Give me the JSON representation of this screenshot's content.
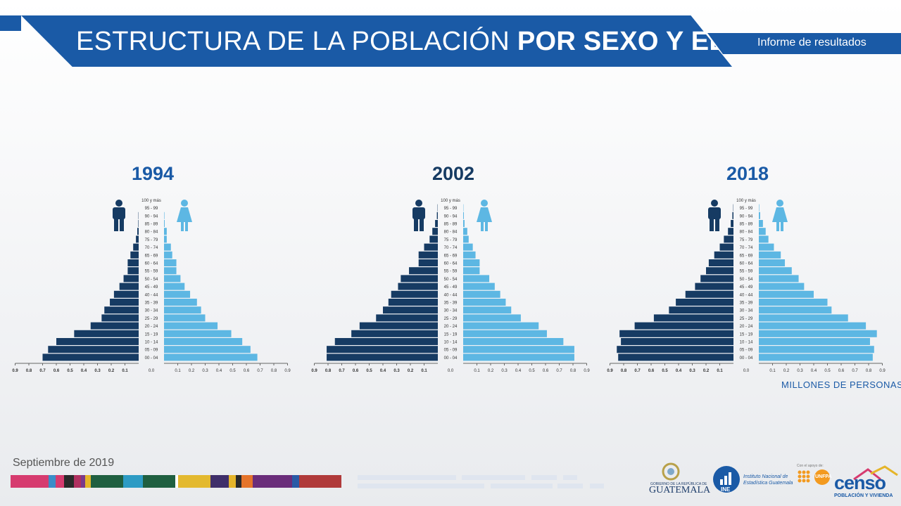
{
  "header": {
    "title_regular": "ESTRUCTURA DE LA POBLACIÓN",
    "title_bold": "POR SEXO Y EDAD",
    "subtitle": "Informe de  resultados"
  },
  "colors": {
    "banner": "#1a5aa6",
    "male": "#163b63",
    "female": "#5db7e3",
    "year_1994": "#1a5aa6",
    "year_2002": "#163b63",
    "year_2018": "#1a5aa6"
  },
  "icons": {
    "male": "man-icon",
    "female": "woman-icon"
  },
  "unit_label": "MILLONES DE PERSONAS",
  "footer": {
    "date": "Septiembre de 2019",
    "logos": {
      "gov_small": "GOBIERNO DE LA REPÚBLICA DE",
      "gov_big": "GUATEMALA",
      "ine_abbr": "INE",
      "ine_name_1": "Instituto Nacional de",
      "ine_name_2": "Estadística Guatemala",
      "unfpa_support": "Con el apoyo de:",
      "unfpa": "UNFPA",
      "censo": "censo",
      "censo_sub": "POBLACIÓN Y VIVIENDA"
    },
    "stripe_colors": [
      "#d63b6f",
      "#d63b6f",
      "#3a8dc8",
      "#d63b6f",
      "#2a2a2a",
      "#b03060",
      "#7a3a8a",
      "#e5b52a",
      "#1f5f40",
      "#2d9bc4",
      "#1f5f40",
      "#ffffff",
      "#e3b92f",
      "#3f2f6a",
      "#e5b52a",
      "#2a2a2a",
      "#e5742b",
      "#6a2d7a",
      "#2a5aa6",
      "#b03a3a"
    ]
  },
  "chart_data": [
    {
      "type": "bar",
      "title": "1994",
      "categories": [
        "00 - 04",
        "05 - 09",
        "10 - 14",
        "15 - 19",
        "20 - 24",
        "25 - 29",
        "30 - 34",
        "35 - 39",
        "40 - 44",
        "45 - 49",
        "50 - 54",
        "55 - 59",
        "60 - 64",
        "65 - 69",
        "70 - 74",
        "75 - 79",
        "80 - 84",
        "85 - 89",
        "90 - 94",
        "95 - 99",
        "100 y más"
      ],
      "series": [
        {
          "values": [
            0.7,
            0.66,
            0.6,
            0.47,
            0.35,
            0.27,
            0.25,
            0.21,
            0.18,
            0.14,
            0.11,
            0.08,
            0.08,
            0.06,
            0.04,
            0.02,
            0.01,
            0.003,
            0.002,
            0.001,
            0.0
          ]
        },
        {
          "values": [
            0.68,
            0.63,
            0.57,
            0.49,
            0.39,
            0.3,
            0.27,
            0.24,
            0.19,
            0.15,
            0.12,
            0.09,
            0.09,
            0.06,
            0.05,
            0.02,
            0.02,
            0.005,
            0.003,
            0.001,
            0.0
          ]
        }
      ],
      "xticks_left": [
        "0.9",
        "0.8",
        "0.7",
        "0.6",
        "0.5",
        "0.4",
        "0.3",
        "0.2",
        "0.1"
      ],
      "xticks_right": [
        "0.0",
        "0.1",
        "0.2",
        "0.3",
        "0.4",
        "0.5",
        "0.6",
        "0.7",
        "0.8",
        "0.9"
      ],
      "xlim": [
        0,
        0.9
      ]
    },
    {
      "type": "bar",
      "title": "2002",
      "categories": [
        "00 - 04",
        "05 - 09",
        "10 - 14",
        "15 - 19",
        "20 - 24",
        "25 - 29",
        "30 - 34",
        "35 - 39",
        "40 - 44",
        "45 - 49",
        "50 - 54",
        "55 - 59",
        "60 - 64",
        "65 - 69",
        "70 - 74",
        "75 - 79",
        "80 - 84",
        "85 - 89",
        "90 - 94",
        "95 - 99",
        "100 y más"
      ],
      "series": [
        {
          "values": [
            0.81,
            0.81,
            0.75,
            0.63,
            0.57,
            0.45,
            0.4,
            0.36,
            0.34,
            0.29,
            0.27,
            0.21,
            0.14,
            0.14,
            0.1,
            0.06,
            0.04,
            0.02,
            0.007,
            0.002,
            0.0
          ]
        },
        {
          "values": [
            0.81,
            0.81,
            0.73,
            0.61,
            0.55,
            0.42,
            0.35,
            0.31,
            0.27,
            0.23,
            0.19,
            0.12,
            0.12,
            0.09,
            0.07,
            0.04,
            0.03,
            0.01,
            0.005,
            0.002,
            0.0
          ]
        }
      ],
      "xticks_left": [
        "0.9",
        "0.8",
        "0.7",
        "0.6",
        "0.5",
        "0.4",
        "0.3",
        "0.2",
        "0.1"
      ],
      "xticks_right": [
        "0.0",
        "0.1",
        "0.2",
        "0.3",
        "0.4",
        "0.5",
        "0.6",
        "0.7",
        "0.8",
        "0.9"
      ],
      "xlim": [
        0,
        0.9
      ]
    },
    {
      "type": "bar",
      "title": "2018",
      "categories": [
        "00 - 04",
        "05 - 09",
        "10 - 14",
        "15 - 19",
        "20 - 24",
        "25 - 29",
        "30 - 34",
        "35 - 39",
        "40 - 44",
        "45 - 49",
        "50 - 54",
        "55 - 59",
        "60 - 64",
        "65 - 69",
        "70 - 74",
        "75 - 79",
        "80 - 84",
        "85 - 89",
        "90 - 94",
        "95 - 99",
        "100 y más"
      ],
      "series": [
        {
          "values": [
            0.84,
            0.85,
            0.82,
            0.83,
            0.72,
            0.58,
            0.47,
            0.42,
            0.35,
            0.28,
            0.24,
            0.2,
            0.18,
            0.14,
            0.1,
            0.07,
            0.04,
            0.02,
            0.008,
            0.002,
            0.0
          ]
        },
        {
          "values": [
            0.83,
            0.84,
            0.81,
            0.86,
            0.78,
            0.65,
            0.53,
            0.5,
            0.4,
            0.33,
            0.29,
            0.24,
            0.19,
            0.16,
            0.11,
            0.07,
            0.05,
            0.03,
            0.01,
            0.003,
            0.0
          ]
        }
      ],
      "xticks_left": [
        "0.9",
        "0.8",
        "0.7",
        "0.6",
        "0.5",
        "0.4",
        "0.3",
        "0.2",
        "0.1"
      ],
      "xticks_right": [
        "0.0",
        "0.1",
        "0.2",
        "0.3",
        "0.4",
        "0.5",
        "0.6",
        "0.7",
        "0.8",
        "0.9"
      ],
      "xlim": [
        0,
        0.9
      ]
    }
  ]
}
